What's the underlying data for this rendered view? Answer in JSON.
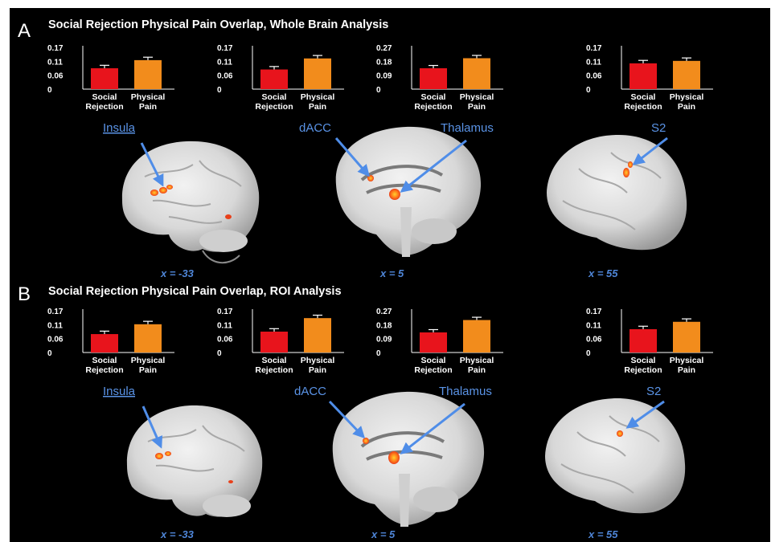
{
  "colors": {
    "background": "#000000",
    "social_rejection": "#e8141c",
    "physical_pain": "#f28c1c",
    "axis": "#ffffff",
    "label_blue": "#5a93e6",
    "activation": "#ff5a1a",
    "activation_core": "#ffc020"
  },
  "panels": [
    {
      "letter": "A",
      "title": "Social Rejection Physical Pain Overlap, Whole Brain Analysis",
      "coords": [
        "x = -33",
        "x = 5",
        "x = 55"
      ]
    },
    {
      "letter": "B",
      "title": "Social Rejection Physical Pain Overlap, ROI Analysis",
      "coords": [
        "x = -33",
        "x = 5",
        "x = 55"
      ]
    }
  ],
  "chart_data": [
    {
      "type": "bar",
      "panel": "A",
      "region": "Insula",
      "categories": [
        "Social\nRejection",
        "Physical\nPain"
      ],
      "values": [
        0.085,
        0.118
      ],
      "errors": [
        0.012,
        0.012
      ],
      "yticks": [
        "0.17",
        "0.11",
        "0.06",
        "0"
      ],
      "ylim": [
        0,
        0.17
      ],
      "colors": [
        "#e8141c",
        "#f28c1c"
      ]
    },
    {
      "type": "bar",
      "panel": "A",
      "region": "dACC",
      "categories": [
        "Social\nRejection",
        "Physical\nPain"
      ],
      "values": [
        0.08,
        0.125
      ],
      "errors": [
        0.012,
        0.012
      ],
      "yticks": [
        "0.17",
        "0.11",
        "0.06",
        "0"
      ],
      "ylim": [
        0,
        0.17
      ],
      "colors": [
        "#e8141c",
        "#f28c1c"
      ]
    },
    {
      "type": "bar",
      "panel": "A",
      "region": "Thalamus",
      "categories": [
        "Social\nRejection",
        "Physical\nPain"
      ],
      "values": [
        0.135,
        0.2
      ],
      "errors": [
        0.018,
        0.018
      ],
      "yticks": [
        "0.27",
        "0.18",
        "0.09",
        "0"
      ],
      "ylim": [
        0,
        0.27
      ],
      "colors": [
        "#e8141c",
        "#f28c1c"
      ]
    },
    {
      "type": "bar",
      "panel": "A",
      "region": "S2",
      "categories": [
        "Social\nRejection",
        "Physical\nPain"
      ],
      "values": [
        0.105,
        0.115
      ],
      "errors": [
        0.012,
        0.012
      ],
      "yticks": [
        "0.17",
        "0.11",
        "0.06",
        "0"
      ],
      "ylim": [
        0,
        0.17
      ],
      "colors": [
        "#e8141c",
        "#f28c1c"
      ]
    },
    {
      "type": "bar",
      "panel": "B",
      "region": "Insula",
      "categories": [
        "Social\nRejection",
        "Physical\nPain"
      ],
      "values": [
        0.075,
        0.115
      ],
      "errors": [
        0.012,
        0.012
      ],
      "yticks": [
        "0.17",
        "0.11",
        "0.06",
        "0"
      ],
      "ylim": [
        0,
        0.17
      ],
      "colors": [
        "#e8141c",
        "#f28c1c"
      ]
    },
    {
      "type": "bar",
      "panel": "B",
      "region": "dACC",
      "categories": [
        "Social\nRejection",
        "Physical\nPain"
      ],
      "values": [
        0.085,
        0.14
      ],
      "errors": [
        0.012,
        0.012
      ],
      "yticks": [
        "0.17",
        "0.11",
        "0.06",
        "0"
      ],
      "ylim": [
        0,
        0.17
      ],
      "colors": [
        "#e8141c",
        "#f28c1c"
      ]
    },
    {
      "type": "bar",
      "panel": "B",
      "region": "Thalamus",
      "categories": [
        "Social\nRejection",
        "Physical\nPain"
      ],
      "values": [
        0.13,
        0.21
      ],
      "errors": [
        0.018,
        0.018
      ],
      "yticks": [
        "0.27",
        "0.18",
        "0.09",
        "0"
      ],
      "ylim": [
        0,
        0.27
      ],
      "colors": [
        "#e8141c",
        "#f28c1c"
      ]
    },
    {
      "type": "bar",
      "panel": "B",
      "region": "S2",
      "categories": [
        "Social\nRejection",
        "Physical\nPain"
      ],
      "values": [
        0.095,
        0.125
      ],
      "errors": [
        0.012,
        0.012
      ],
      "yticks": [
        "0.17",
        "0.11",
        "0.06",
        "0"
      ],
      "ylim": [
        0,
        0.17
      ],
      "colors": [
        "#e8141c",
        "#f28c1c"
      ]
    }
  ]
}
